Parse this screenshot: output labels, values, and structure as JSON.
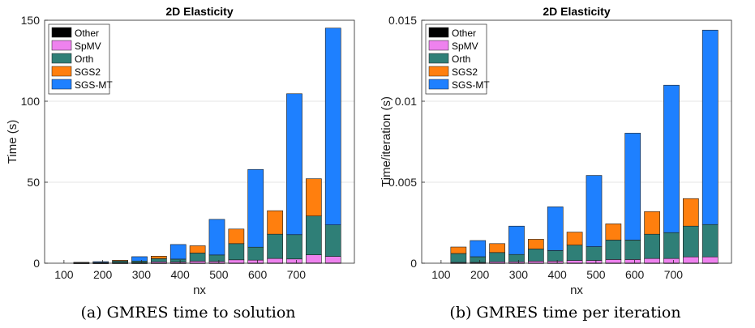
{
  "legend_colors": {
    "Other": "#000000",
    "SpMV": "#ee82ee",
    "Orth": "#2f7f77",
    "SGS2": "#ff7f0e",
    "SGS-MT": "#1e80ff"
  },
  "captions": {
    "a": "(a) GMRES time to solution",
    "b": "(b) GMRES time per iteration"
  },
  "chart_data": [
    {
      "type": "bar",
      "stacked": true,
      "grouped": true,
      "title": "2D Elasticity",
      "xlabel": "nx",
      "ylabel": "Time (s)",
      "categories": [
        100,
        200,
        300,
        400,
        500,
        600,
        700
      ],
      "xlim": [
        50,
        850
      ],
      "ylim": [
        0,
        150
      ],
      "yticks": [
        0,
        50,
        100,
        150
      ],
      "ytick_labels": [
        "0",
        "50",
        "100",
        "150"
      ],
      "xticks": [
        100,
        200,
        300,
        400,
        500,
        600,
        700
      ],
      "xtick_labels": [
        "100",
        "200",
        "300",
        "400",
        "500",
        "600",
        "700"
      ],
      "grid": "y",
      "legend": {
        "position": "top-left",
        "entries": [
          "Other",
          "SpMV",
          "Orth",
          "SGS2",
          "SGS-MT"
        ]
      },
      "groups": [
        {
          "x": 145,
          "width": 40,
          "stack": [
            {
              "name": "Other",
              "values": [
                0.02,
                0.03,
                0.05,
                0.08,
                0.1,
                0.12,
                0.15
              ]
            },
            {
              "name": "SpMV",
              "values": [
                0.05,
                0.3,
                0.8,
                1.2,
                2.0,
                2.8,
                5.0
              ]
            },
            {
              "name": "Orth",
              "values": [
                0.3,
                1.0,
                2.0,
                5.0,
                10.0,
                15.0,
                24.0
              ]
            },
            {
              "name": "SGS2",
              "values": [
                0.2,
                0.5,
                1.5,
                4.5,
                9.0,
                14.5,
                23.0
              ]
            },
            {
              "name": "SGS-MT",
              "values": [
                0,
                0,
                0,
                0,
                0,
                0,
                0
              ]
            }
          ]
        },
        {
          "x": 195,
          "width": 40,
          "stack": [
            {
              "name": "Other",
              "values": [
                0.02,
                0.03,
                0.05,
                0.08,
                0.1,
                0.12,
                0.15
              ]
            },
            {
              "name": "SpMV",
              "values": [
                0.05,
                0.3,
                0.7,
                1.0,
                1.8,
                2.5,
                4.0
              ]
            },
            {
              "name": "Orth",
              "values": [
                0.4,
                1.0,
                1.8,
                4.0,
                8.0,
                15.0,
                19.5
              ]
            },
            {
              "name": "SGS2",
              "values": [
                0,
                0,
                0,
                0,
                0,
                0,
                0
              ]
            },
            {
              "name": "SGS-MT",
              "values": [
                0.5,
                2.7,
                9.0,
                22.0,
                48.0,
                87.0,
                121.5
              ]
            }
          ]
        }
      ]
    },
    {
      "type": "bar",
      "stacked": true,
      "grouped": true,
      "title": "2D Elasticity",
      "xlabel": "nx",
      "ylabel": "Time/iteration (s)",
      "categories": [
        100,
        200,
        300,
        400,
        500,
        600,
        700
      ],
      "xlim": [
        50,
        850
      ],
      "ylim": [
        0,
        0.015
      ],
      "yticks": [
        0,
        0.005,
        0.01,
        0.015
      ],
      "ytick_labels": [
        "0",
        "0.005",
        "0.01",
        "0.015"
      ],
      "xticks": [
        100,
        200,
        300,
        400,
        500,
        600,
        700
      ],
      "xtick_labels": [
        "100",
        "200",
        "300",
        "400",
        "500",
        "600",
        "700"
      ],
      "grid": "y",
      "legend": {
        "position": "top-left",
        "entries": [
          "Other",
          "SpMV",
          "Orth",
          "SGS2",
          "SGS-MT"
        ]
      },
      "groups": [
        {
          "x": 145,
          "width": 40,
          "stack": [
            {
              "name": "Other",
              "values": [
                1e-05,
                1e-05,
                1e-05,
                1e-05,
                1e-05,
                1e-05,
                1e-05
              ]
            },
            {
              "name": "SpMV",
              "values": [
                4e-05,
                8e-05,
                0.00012,
                0.00016,
                0.00022,
                0.00028,
                0.00038
              ]
            },
            {
              "name": "Orth",
              "values": [
                0.00055,
                0.00057,
                0.00075,
                0.00095,
                0.0012,
                0.0015,
                0.0019
              ]
            },
            {
              "name": "SGS2",
              "values": [
                0.0004,
                0.00055,
                0.0006,
                0.0008,
                0.001,
                0.0014,
                0.0017
              ]
            },
            {
              "name": "SGS-MT",
              "values": [
                0,
                0,
                0,
                0,
                0,
                0,
                0
              ]
            }
          ]
        },
        {
          "x": 195,
          "width": 40,
          "stack": [
            {
              "name": "Other",
              "values": [
                1e-05,
                1e-05,
                1e-05,
                1e-05,
                1e-05,
                1e-05,
                1e-05
              ]
            },
            {
              "name": "SpMV",
              "values": [
                4e-05,
                8e-05,
                0.00012,
                0.00016,
                0.00022,
                0.00028,
                0.00038
              ]
            },
            {
              "name": "Orth",
              "values": [
                0.00035,
                0.00045,
                0.00065,
                0.00085,
                0.0012,
                0.0016,
                0.002
              ]
            },
            {
              "name": "SGS2",
              "values": [
                0,
                0,
                0,
                0,
                0,
                0,
                0
              ]
            },
            {
              "name": "SGS-MT",
              "values": [
                0.001,
                0.00175,
                0.0027,
                0.0044,
                0.0066,
                0.0091,
                0.012
              ]
            }
          ]
        }
      ]
    }
  ]
}
